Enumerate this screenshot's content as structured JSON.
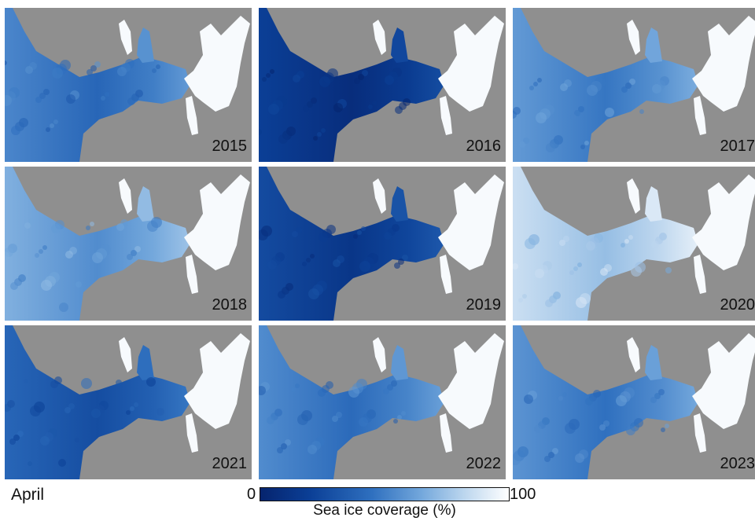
{
  "figure": {
    "month_label": "April",
    "colorbar": {
      "min_label": "0",
      "max_label": "100",
      "label": "Sea ice coverage (%)",
      "colors": [
        "#06246e",
        "#0b3f96",
        "#2f70bf",
        "#74a8dc",
        "#bcd6ee",
        "#ffffff"
      ]
    },
    "land_color": "#8f8f8f",
    "panels": [
      {
        "year": "2015",
        "mean_coverage": 0.45
      },
      {
        "year": "2016",
        "mean_coverage": 0.12
      },
      {
        "year": "2017",
        "mean_coverage": 0.52
      },
      {
        "year": "2018",
        "mean_coverage": 0.6
      },
      {
        "year": "2019",
        "mean_coverage": 0.18
      },
      {
        "year": "2020",
        "mean_coverage": 0.78
      },
      {
        "year": "2021",
        "mean_coverage": 0.32
      },
      {
        "year": "2022",
        "mean_coverage": 0.47
      },
      {
        "year": "2023",
        "mean_coverage": 0.5
      }
    ]
  }
}
